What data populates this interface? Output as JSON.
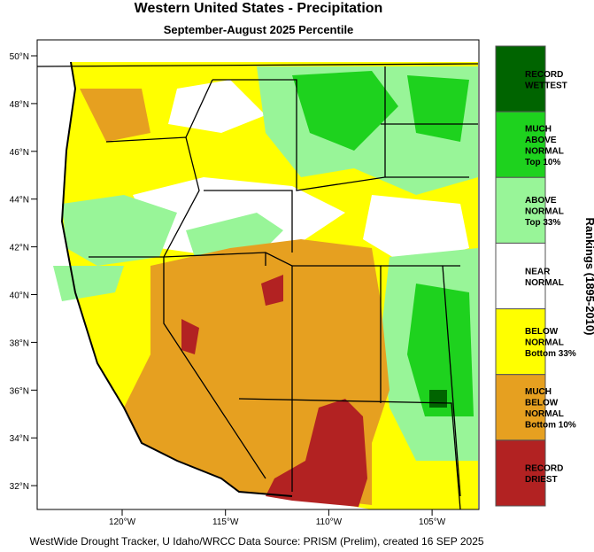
{
  "header": {
    "title": "Western United States - Precipitation",
    "subtitle": "September-August 2025 Percentile"
  },
  "map": {
    "lat_labels": [
      "50°N",
      "48°N",
      "46°N",
      "44°N",
      "42°N",
      "40°N",
      "38°N",
      "36°N",
      "34°N",
      "32°N"
    ],
    "lon_labels": [
      "120°W",
      "115°W",
      "110°W",
      "105°W"
    ]
  },
  "legend": {
    "title": "Rankings (1895-2010)",
    "items": [
      {
        "lines": [
          "RECORD",
          "WETTEST"
        ],
        "color": "#006400"
      },
      {
        "lines": [
          "MUCH",
          "ABOVE",
          "NORMAL",
          "Top 10%"
        ],
        "color": "#1ed21e"
      },
      {
        "lines": [
          "ABOVE",
          "NORMAL",
          "Top 33%"
        ],
        "color": "#98f598"
      },
      {
        "lines": [
          "NEAR",
          "NORMAL"
        ],
        "color": "#ffffff"
      },
      {
        "lines": [
          "BELOW",
          "NORMAL",
          "Bottom 33%"
        ],
        "color": "#ffff00"
      },
      {
        "lines": [
          "MUCH",
          "BELOW",
          "NORMAL",
          "Bottom 10%"
        ],
        "color": "#e6a020"
      },
      {
        "lines": [
          "RECORD",
          "DRIEST"
        ],
        "color": "#b22222"
      }
    ]
  },
  "footer": "WestWide Drought Tracker, U Idaho/WRCC Data Source: PRISM (Prelim), created 16 SEP 2025"
}
